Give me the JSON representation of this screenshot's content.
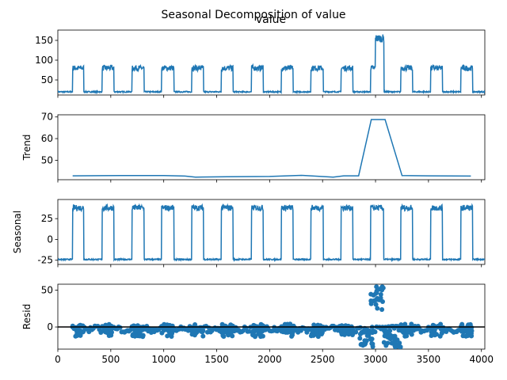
{
  "figure": {
    "title": "Seasonal Decomposition of value"
  },
  "chart_data": [
    {
      "type": "line",
      "panel": "observed",
      "title": "value",
      "ylabel": "",
      "xlim": [
        0,
        4032
      ],
      "ylim": [
        12,
        176
      ],
      "yticks": [
        50,
        100,
        150
      ],
      "xticks": [
        0,
        500,
        1000,
        1500,
        2000,
        2500,
        3000,
        3500,
        4000
      ],
      "show_xticklabels": false,
      "color": "#1f77b4",
      "series": [
        {
          "period": 288,
          "low": 20,
          "high": 80,
          "high_windows": [
            [
              140,
              245
            ],
            [
              420,
              530
            ],
            [
              700,
              815
            ],
            [
              980,
              1095
            ],
            [
              1265,
              1375
            ],
            [
              1545,
              1655
            ],
            [
              1830,
              1940
            ],
            [
              2110,
              2220
            ],
            [
              2390,
              2505
            ],
            [
              2675,
              2785
            ],
            [
              2955,
              3075
            ],
            [
              3240,
              3350
            ],
            [
              3520,
              3630
            ],
            [
              3805,
              3915
            ]
          ],
          "anomaly": {
            "start": 3000,
            "end": 3080,
            "level": 145,
            "peak": 165
          },
          "x_end": 4032
        }
      ]
    },
    {
      "type": "line",
      "panel": "trend",
      "ylabel": "Trend",
      "xlim": [
        0,
        4032
      ],
      "ylim": [
        41,
        71
      ],
      "yticks": [
        50,
        60,
        70
      ],
      "show_xticklabels": false,
      "color": "#1f77b4",
      "x": [
        140,
        600,
        1000,
        1200,
        1300,
        1600,
        2000,
        2300,
        2600,
        2700,
        2840,
        2960,
        3090,
        3250,
        3500,
        3900
      ],
      "y": [
        42.8,
        42.9,
        42.9,
        42.7,
        42.2,
        42.4,
        42.5,
        43.0,
        42.2,
        42.8,
        42.8,
        68.8,
        68.8,
        42.9,
        42.8,
        42.7
      ]
    },
    {
      "type": "line",
      "panel": "seasonal",
      "ylabel": "Seasonal",
      "xlim": [
        0,
        4032
      ],
      "ylim": [
        -30,
        48
      ],
      "yticks": [
        -25,
        0,
        25
      ],
      "show_xticklabels": false,
      "color": "#1f77b4",
      "series": [
        {
          "period": 288,
          "low": -24,
          "high": 38,
          "high_windows": [
            [
              140,
              245
            ],
            [
              420,
              530
            ],
            [
              700,
              815
            ],
            [
              980,
              1095
            ],
            [
              1265,
              1375
            ],
            [
              1545,
              1655
            ],
            [
              1830,
              1940
            ],
            [
              2110,
              2220
            ],
            [
              2390,
              2505
            ],
            [
              2675,
              2785
            ],
            [
              2955,
              3075
            ],
            [
              3240,
              3350
            ],
            [
              3520,
              3630
            ],
            [
              3805,
              3915
            ]
          ],
          "x_end": 4032
        }
      ]
    },
    {
      "type": "scatter",
      "panel": "resid",
      "ylabel": "Resid",
      "xlim": [
        0,
        4032
      ],
      "ylim": [
        -30,
        58
      ],
      "yticks": [
        0,
        50
      ],
      "xticks": [
        0,
        500,
        1000,
        1500,
        2000,
        2500,
        3000,
        3500,
        4000
      ],
      "show_xticklabels": true,
      "color": "#1f77b4",
      "baseline": 0,
      "clusters": [
        {
          "x": [
            140,
            245
          ],
          "y": [
            -13,
            4
          ]
        },
        {
          "x": [
            420,
            530
          ],
          "y": [
            -13,
            4
          ]
        },
        {
          "x": [
            700,
            815
          ],
          "y": [
            -13,
            4
          ]
        },
        {
          "x": [
            980,
            1095
          ],
          "y": [
            -13,
            4
          ]
        },
        {
          "x": [
            1265,
            1375
          ],
          "y": [
            -13,
            4
          ]
        },
        {
          "x": [
            1545,
            1655
          ],
          "y": [
            -13,
            4
          ]
        },
        {
          "x": [
            1830,
            1940
          ],
          "y": [
            -13,
            4
          ]
        },
        {
          "x": [
            2110,
            2220
          ],
          "y": [
            -13,
            4
          ]
        },
        {
          "x": [
            2390,
            2505
          ],
          "y": [
            -13,
            4
          ]
        },
        {
          "x": [
            2675,
            2785
          ],
          "y": [
            -13,
            4
          ]
        },
        {
          "x": [
            2955,
            3075
          ],
          "y": [
            22,
            55
          ]
        },
        {
          "x": [
            3240,
            3350
          ],
          "y": [
            -13,
            4
          ]
        },
        {
          "x": [
            3520,
            3630
          ],
          "y": [
            -13,
            4
          ]
        },
        {
          "x": [
            3805,
            3915
          ],
          "y": [
            -13,
            4
          ]
        },
        {
          "x": [
            2840,
            3000
          ],
          "y": [
            -28,
            -5
          ]
        },
        {
          "x": [
            3080,
            3240
          ],
          "y": [
            -28,
            -5
          ]
        }
      ]
    }
  ]
}
